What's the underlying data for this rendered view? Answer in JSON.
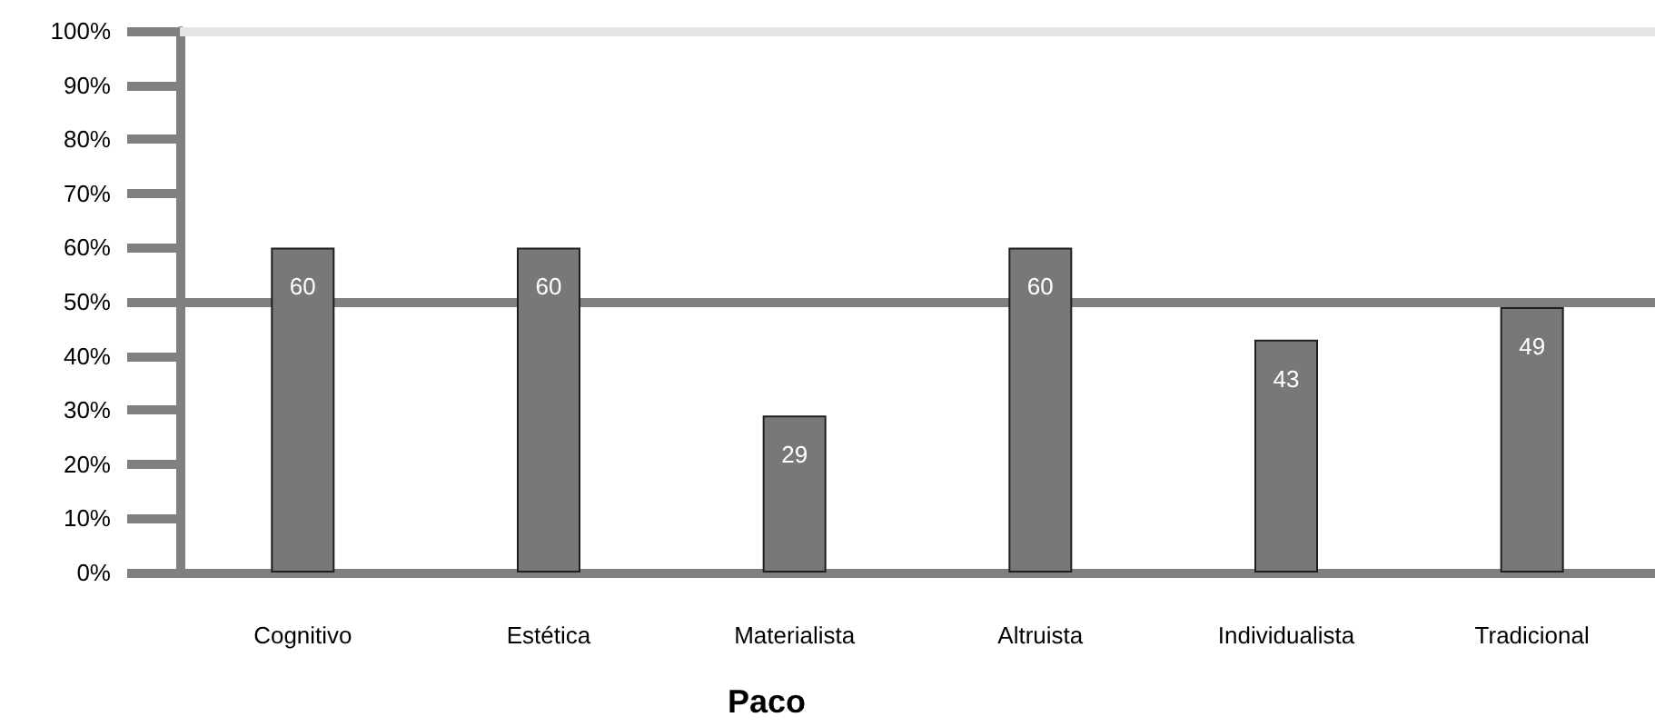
{
  "chart_data": {
    "type": "bar",
    "xlabel": "Paco",
    "categories": [
      "Cognitivo",
      "Estética",
      "Materialista",
      "Altruista",
      "Individualista",
      "Tradicional"
    ],
    "values": [
      60,
      60,
      29,
      60,
      43,
      49
    ],
    "color": "#787878",
    "data_labels": true,
    "ylim": [
      0,
      100
    ],
    "yticks": [
      {
        "value": 0,
        "label": "0%"
      },
      {
        "value": 10,
        "label": "10%"
      },
      {
        "value": 20,
        "label": "20%"
      },
      {
        "value": 30,
        "label": "30%"
      },
      {
        "value": 40,
        "label": "40%"
      },
      {
        "value": 50,
        "label": "50%"
      },
      {
        "value": 60,
        "label": "60%"
      },
      {
        "value": 70,
        "label": "70%"
      },
      {
        "value": 80,
        "label": "80%"
      },
      {
        "value": 90,
        "label": "90%"
      },
      {
        "value": 100,
        "label": "100%"
      }
    ],
    "ref_lines": [
      {
        "axis": "y",
        "value": 50,
        "color": "#808080"
      },
      {
        "axis": "y",
        "value": 100,
        "color": "#e4e4e4"
      }
    ]
  }
}
